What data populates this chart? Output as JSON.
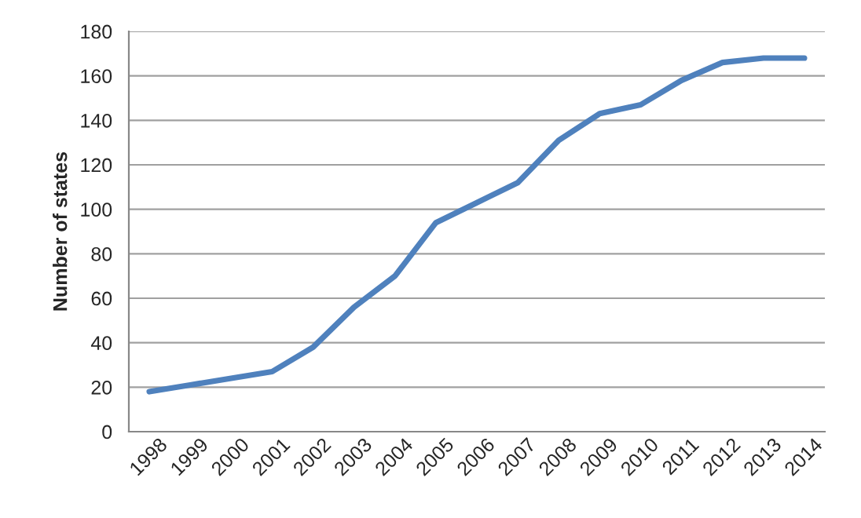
{
  "chart_data": {
    "type": "line",
    "ylabel": "Number of states",
    "categories": [
      "1998",
      "1999",
      "2000",
      "2001",
      "2002",
      "2003",
      "2004",
      "2005",
      "2006",
      "2007",
      "2008",
      "2009",
      "2010",
      "2011",
      "2012",
      "2013",
      "2014"
    ],
    "series": [
      {
        "color": "#4f81bd",
        "values": [
          18,
          21,
          24,
          27,
          38,
          56,
          70,
          94,
          103,
          112,
          131,
          143,
          147,
          158,
          166,
          168,
          168
        ]
      }
    ],
    "ylim": [
      0,
      180
    ],
    "yticks": [
      0,
      20,
      40,
      60,
      80,
      100,
      120,
      140,
      160,
      180
    ],
    "grid": "y",
    "marker": "none",
    "line_style": "solid"
  }
}
